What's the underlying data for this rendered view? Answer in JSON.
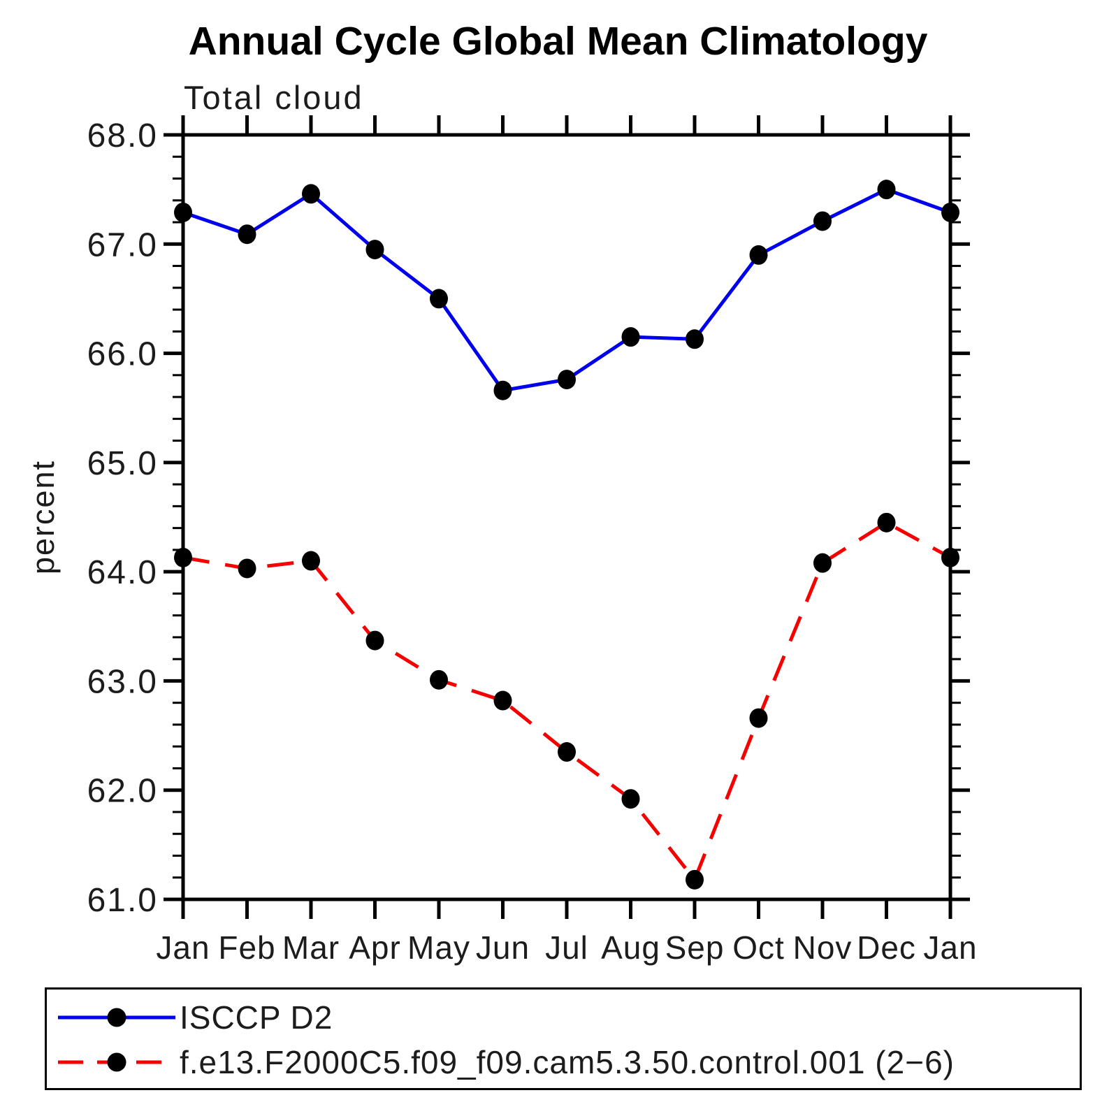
{
  "title": "Annual Cycle Global Mean Climatology",
  "subtitle": "Total cloud",
  "axes": {
    "y": {
      "label": "percent",
      "tick_labels": [
        "68.0",
        "67.0",
        "66.0",
        "65.0",
        "64.0",
        "63.0",
        "62.0",
        "61.0"
      ],
      "tick_values": [
        68.0,
        67.0,
        66.0,
        65.0,
        64.0,
        63.0,
        62.0,
        61.0
      ],
      "minor_step": 0.2,
      "range": [
        61.0,
        68.0
      ]
    },
    "x": {
      "tick_labels": [
        "Jan",
        "Feb",
        "Mar",
        "Apr",
        "May",
        "Jun",
        "Jul",
        "Aug",
        "Sep",
        "Oct",
        "Nov",
        "Dec",
        "Jan"
      ]
    }
  },
  "legend": {
    "items": [
      {
        "label": "ISCCP D2"
      },
      {
        "label": "f.e13.F2000C5.f09_f09.cam5.3.50.control.001 (2−6)"
      }
    ]
  },
  "chart_data": {
    "type": "line",
    "title": "Annual Cycle Global Mean Climatology",
    "subtitle": "Total cloud",
    "xlabel": "",
    "ylabel": "percent",
    "ylim": [
      61.0,
      68.0
    ],
    "grid": false,
    "legend_position": "bottom",
    "categories": [
      "Jan",
      "Feb",
      "Mar",
      "Apr",
      "May",
      "Jun",
      "Jul",
      "Aug",
      "Sep",
      "Oct",
      "Nov",
      "Dec",
      "Jan"
    ],
    "series": [
      {
        "name": "ISCCP D2",
        "color": "#0000ee",
        "line_style": "solid",
        "marker": "circle",
        "marker_color": "#000000",
        "values": [
          67.29,
          67.09,
          67.46,
          66.95,
          66.5,
          65.66,
          65.76,
          66.15,
          66.13,
          66.9,
          67.21,
          67.5,
          67.29
        ]
      },
      {
        "name": "f.e13.F2000C5.f09_f09.cam5.3.50.control.001 (2−6)",
        "color": "#f60000",
        "line_style": "dashed",
        "marker": "circle",
        "marker_color": "#000000",
        "values": [
          64.13,
          64.03,
          64.1,
          63.37,
          63.01,
          62.82,
          62.35,
          61.92,
          61.18,
          62.66,
          64.08,
          64.45,
          64.13
        ]
      }
    ]
  }
}
